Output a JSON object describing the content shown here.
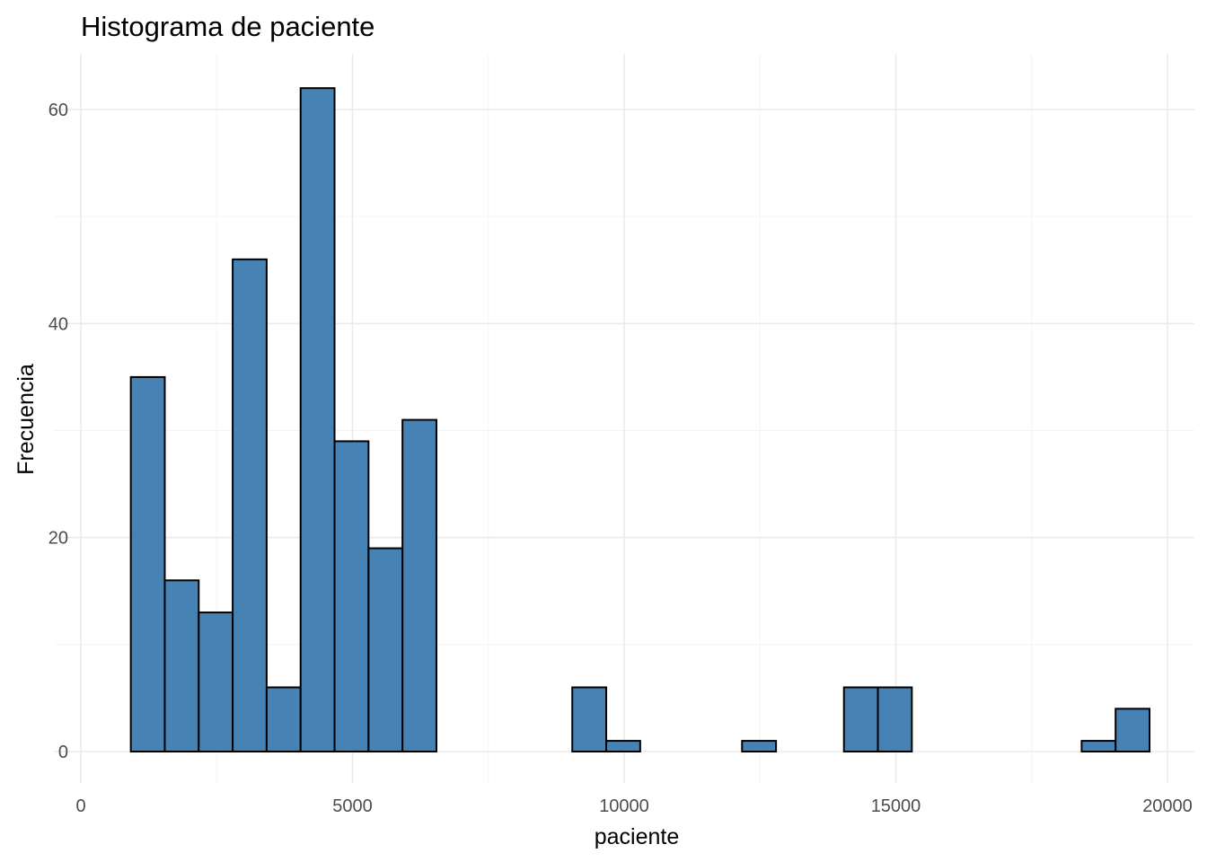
{
  "chart_data": {
    "type": "bar",
    "subtype": "histogram",
    "title": "Histograma de paciente",
    "xlabel": "paciente",
    "ylabel": "Frecuencia",
    "xlim": [
      0,
      20000
    ],
    "ylim": [
      0,
      62
    ],
    "x_ticks": [
      0,
      5000,
      10000,
      15000,
      20000
    ],
    "x_tick_labels": [
      "0",
      "5000",
      "10000",
      "15000",
      "20000"
    ],
    "y_ticks": [
      0,
      20,
      40,
      60
    ],
    "y_tick_labels": [
      "0",
      "20",
      "40",
      "60"
    ],
    "grid": true,
    "legend": "none",
    "bar_fill": "#4682b4",
    "bar_outline": "#000000",
    "bins": [
      {
        "x0": 920,
        "x1": 1545,
        "count": 35
      },
      {
        "x0": 1545,
        "x1": 2170,
        "count": 16
      },
      {
        "x0": 2170,
        "x1": 2795,
        "count": 13
      },
      {
        "x0": 2795,
        "x1": 3420,
        "count": 46
      },
      {
        "x0": 3420,
        "x1": 4045,
        "count": 6
      },
      {
        "x0": 4045,
        "x1": 4670,
        "count": 62
      },
      {
        "x0": 4670,
        "x1": 5295,
        "count": 29
      },
      {
        "x0": 5295,
        "x1": 5920,
        "count": 19
      },
      {
        "x0": 5920,
        "x1": 6545,
        "count": 31
      },
      {
        "x0": 6545,
        "x1": 7170,
        "count": 0
      },
      {
        "x0": 7170,
        "x1": 7795,
        "count": 0
      },
      {
        "x0": 7795,
        "x1": 8420,
        "count": 0
      },
      {
        "x0": 8420,
        "x1": 9045,
        "count": 0
      },
      {
        "x0": 9045,
        "x1": 9670,
        "count": 6
      },
      {
        "x0": 9670,
        "x1": 10295,
        "count": 1
      },
      {
        "x0": 10295,
        "x1": 10920,
        "count": 0
      },
      {
        "x0": 10920,
        "x1": 11545,
        "count": 0
      },
      {
        "x0": 11545,
        "x1": 12170,
        "count": 0
      },
      {
        "x0": 12170,
        "x1": 12795,
        "count": 1
      },
      {
        "x0": 12795,
        "x1": 13420,
        "count": 0
      },
      {
        "x0": 13420,
        "x1": 14045,
        "count": 0
      },
      {
        "x0": 14045,
        "x1": 14670,
        "count": 6
      },
      {
        "x0": 14670,
        "x1": 15295,
        "count": 6
      },
      {
        "x0": 15295,
        "x1": 15920,
        "count": 0
      },
      {
        "x0": 15920,
        "x1": 16545,
        "count": 0
      },
      {
        "x0": 16545,
        "x1": 17170,
        "count": 0
      },
      {
        "x0": 17170,
        "x1": 17795,
        "count": 0
      },
      {
        "x0": 17795,
        "x1": 18420,
        "count": 0
      },
      {
        "x0": 18420,
        "x1": 19045,
        "count": 1
      },
      {
        "x0": 19045,
        "x1": 19670,
        "count": 4
      }
    ]
  }
}
